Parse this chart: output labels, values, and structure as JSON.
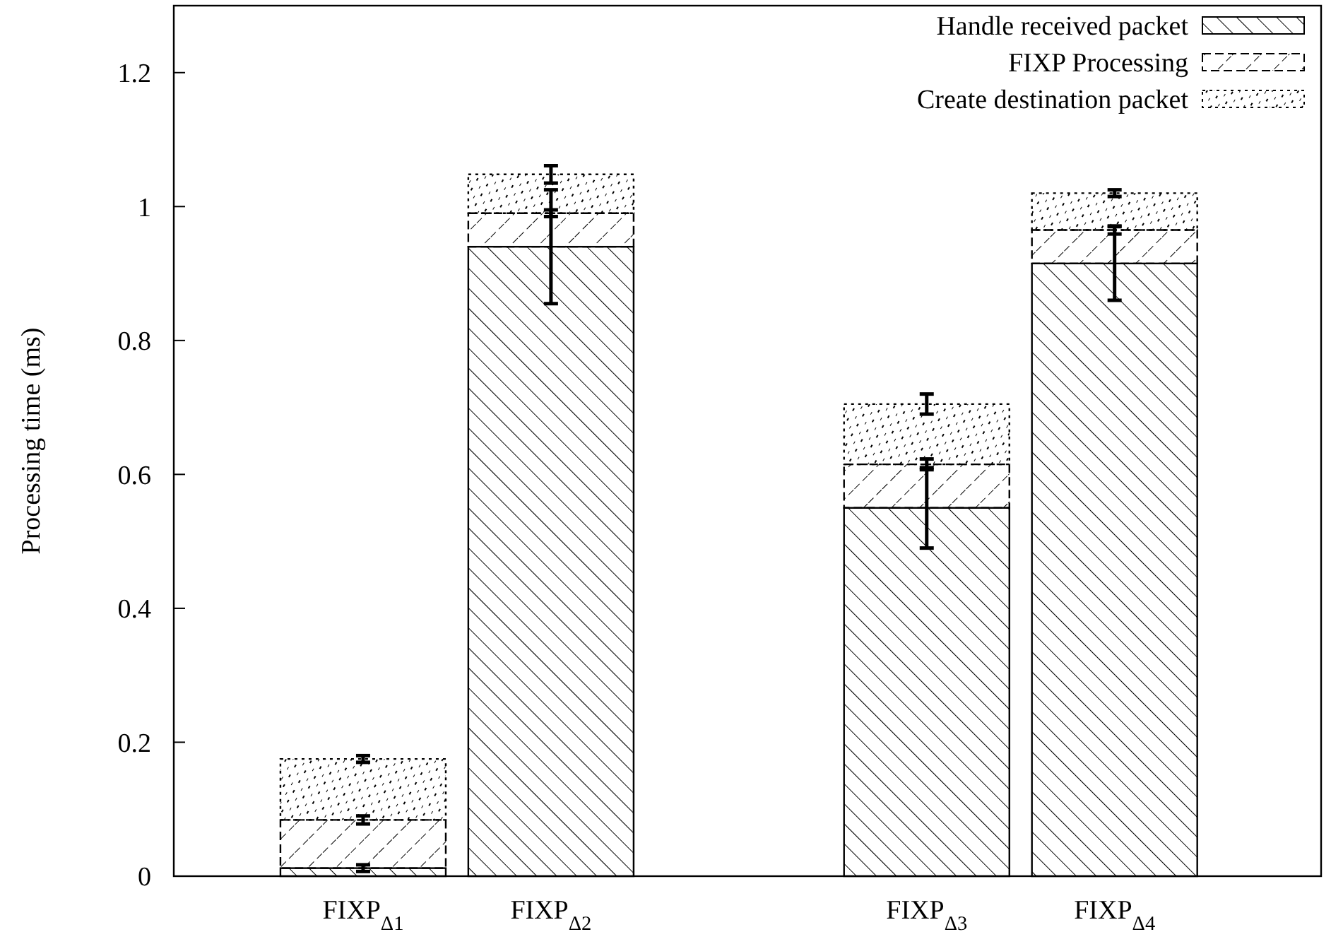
{
  "chart_data": {
    "type": "bar",
    "stacked": true,
    "ylabel": "Processing time (ms)",
    "categories": [
      "FIXP$_{Δ1}$",
      "FIXP$_{Δ2}$",
      null,
      "FIXP$_{Δ3}$",
      "FIXP$_{Δ4}$"
    ],
    "series": [
      {
        "name": "Handle received packet",
        "color": "#000000",
        "values": [
          0.012,
          0.94,
          null,
          0.55,
          0.915
        ],
        "errors": [
          0.005,
          0.085,
          null,
          0.06,
          0.055
        ]
      },
      {
        "name": "FIXP Processing",
        "color": "#000000",
        "values": [
          0.072,
          0.05,
          null,
          0.065,
          0.05
        ],
        "errors": [
          0.006,
          0.005,
          null,
          0.008,
          0.006
        ]
      },
      {
        "name": "Create destination packet",
        "color": "#000000",
        "values": [
          0.091,
          0.058,
          null,
          0.09,
          0.055
        ],
        "errors": [
          0.005,
          0.013,
          null,
          0.015,
          0.005
        ]
      }
    ],
    "ylim": [
      0,
      1.3
    ],
    "yticks": [
      0,
      0.2,
      0.4,
      0.6,
      0.8,
      1,
      1.2
    ],
    "grid": false,
    "legend": "top right"
  }
}
